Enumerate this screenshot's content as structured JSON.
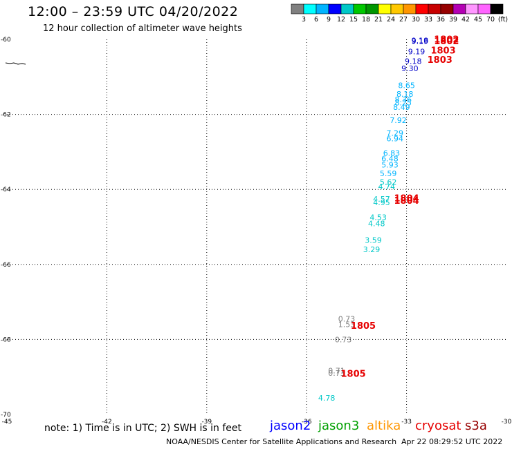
{
  "header": {
    "title": "12:00 – 23:59 UTC 04/20/2022",
    "subtitle": "12 hour collection of altimeter wave heights"
  },
  "colorbar": {
    "colors": [
      "#808080",
      "#00ffff",
      "#00b4ff",
      "#0000ff",
      "#00c8c8",
      "#00c800",
      "#009600",
      "#ffff00",
      "#ffc800",
      "#ff9600",
      "#ff0000",
      "#c80000",
      "#960000",
      "#b400b4",
      "#ff96ff",
      "#ff64ff",
      "#000000"
    ],
    "labels": [
      "3",
      "6",
      "9",
      "12",
      "15",
      "18",
      "21",
      "24",
      "27",
      "30",
      "33",
      "36",
      "39",
      "42",
      "45",
      "70"
    ],
    "unit": "(ft)"
  },
  "footer": {
    "note": "note: 1) Time is in UTC; 2) SWH is in feet",
    "credit": "NOAA/NESDIS Center for Satellite Applications and Research",
    "timestamp": "Apr 22 08:29:52 UTC 2022"
  },
  "satellites": [
    {
      "name": "jason2",
      "color": "#0000ff"
    },
    {
      "name": "jason3",
      "color": "#00a000"
    },
    {
      "name": "altika",
      "color": "#ff9600"
    },
    {
      "name": "cryosat",
      "color": "#e60000"
    },
    {
      "name": "s3a",
      "color": "#960000"
    }
  ],
  "chart_data": {
    "type": "scatter",
    "xlim": [
      -45,
      -30
    ],
    "ylim": [
      -70,
      -60
    ],
    "x_ticks": [
      -45,
      -42,
      -39,
      -36,
      -33,
      -30
    ],
    "y_ticks": [
      -60,
      -62,
      -64,
      -66,
      -68,
      -70
    ],
    "x_tick_labels": [
      "-45",
      "-42",
      "-39",
      "-36",
      "-33",
      "-30"
    ],
    "y_tick_labels": [
      "-60",
      "-62",
      "-64",
      "-66",
      "-68",
      "-70"
    ],
    "grid": true,
    "points": [
      {
        "x": -32.6,
        "y": -60.1,
        "label": "9.18",
        "color": "#0000c8"
      },
      {
        "x": -32.6,
        "y": -60.12,
        "label": "9.19",
        "color": "#0000c8"
      },
      {
        "x": -32.7,
        "y": -60.4,
        "label": "9.19",
        "color": "#0000c8"
      },
      {
        "x": -32.8,
        "y": -60.65,
        "label": "9.18",
        "color": "#0000c8"
      },
      {
        "x": -32.9,
        "y": -60.85,
        "label": "9.30",
        "color": "#0000c8"
      },
      {
        "x": -33.0,
        "y": -61.3,
        "label": "8.65",
        "color": "#00b4ff"
      },
      {
        "x": -33.05,
        "y": -61.53,
        "label": "8.18",
        "color": "#00b4ff"
      },
      {
        "x": -33.1,
        "y": -61.68,
        "label": "8.36",
        "color": "#00b4ff"
      },
      {
        "x": -33.1,
        "y": -61.76,
        "label": "8.25",
        "color": "#00b4ff"
      },
      {
        "x": -33.15,
        "y": -61.88,
        "label": "8.49",
        "color": "#00b4ff"
      },
      {
        "x": -33.25,
        "y": -62.23,
        "label": "7.92",
        "color": "#00b4ff"
      },
      {
        "x": -33.35,
        "y": -62.57,
        "label": "7.29",
        "color": "#00b4ff"
      },
      {
        "x": -33.35,
        "y": -62.72,
        "label": "6.94",
        "color": "#00b4ff"
      },
      {
        "x": -33.45,
        "y": -63.1,
        "label": "6.83",
        "color": "#00b4ff"
      },
      {
        "x": -33.5,
        "y": -63.25,
        "label": "6.48",
        "color": "#00b4ff"
      },
      {
        "x": -33.5,
        "y": -63.42,
        "label": "5.93",
        "color": "#00b4ff"
      },
      {
        "x": -33.55,
        "y": -63.65,
        "label": "5.59",
        "color": "#00b4ff"
      },
      {
        "x": -33.55,
        "y": -63.88,
        "label": "5.62",
        "color": "#00c8c8"
      },
      {
        "x": -33.6,
        "y": -64.0,
        "label": "4.74",
        "color": "#00c8c8"
      },
      {
        "x": -33.75,
        "y": -64.33,
        "label": "4.57",
        "color": "#00c8c8"
      },
      {
        "x": -33.75,
        "y": -64.42,
        "label": "4.95",
        "color": "#00c8c8"
      },
      {
        "x": -33.85,
        "y": -64.82,
        "label": "4.53",
        "color": "#00c8c8"
      },
      {
        "x": -33.9,
        "y": -64.98,
        "label": "4.48",
        "color": "#00c8c8"
      },
      {
        "x": -34.0,
        "y": -65.42,
        "label": "3.59",
        "color": "#00c8c8"
      },
      {
        "x": -34.05,
        "y": -65.67,
        "label": "3.29",
        "color": "#00c8c8"
      },
      {
        "x": -34.8,
        "y": -67.52,
        "label": "0.73",
        "color": "#808080"
      },
      {
        "x": -34.8,
        "y": -67.67,
        "label": "1.53",
        "color": "#808080"
      },
      {
        "x": -34.9,
        "y": -68.08,
        "label": "0.73",
        "color": "#808080"
      },
      {
        "x": -35.1,
        "y": -68.9,
        "label": "0.71",
        "color": "#808080"
      },
      {
        "x": -35.1,
        "y": -68.97,
        "label": "0.73",
        "color": "#808080"
      },
      {
        "x": -35.4,
        "y": -69.63,
        "label": "4.78",
        "color": "#00c8c8"
      }
    ],
    "annotations": [
      {
        "x": -31.8,
        "y": -60.08,
        "label": "1802",
        "color": "#e60000"
      },
      {
        "x": -31.8,
        "y": -60.13,
        "label": "1802",
        "color": "#e60000"
      },
      {
        "x": -31.9,
        "y": -60.38,
        "label": "1803",
        "color": "#e60000"
      },
      {
        "x": -32.0,
        "y": -60.63,
        "label": "1803",
        "color": "#e60000"
      },
      {
        "x": -33.0,
        "y": -64.32,
        "label": "1804",
        "color": "#e60000"
      },
      {
        "x": -33.0,
        "y": -64.38,
        "label": "1804",
        "color": "#e60000"
      },
      {
        "x": -34.3,
        "y": -67.72,
        "label": "1805",
        "color": "#e60000"
      },
      {
        "x": -34.6,
        "y": -69.0,
        "label": "1805",
        "color": "#e60000"
      }
    ]
  }
}
